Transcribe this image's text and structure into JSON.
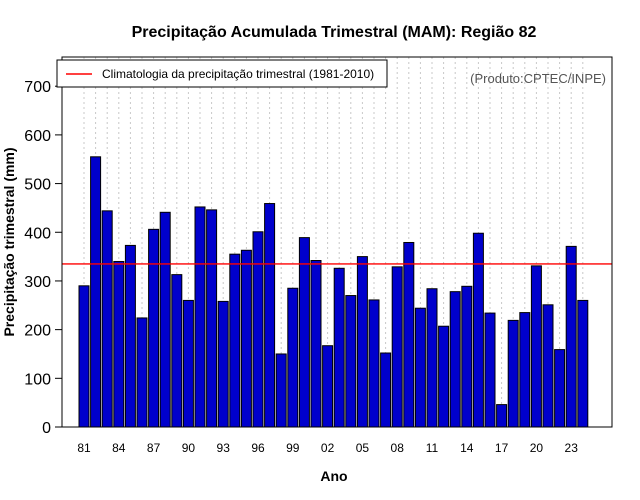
{
  "chart_data": {
    "type": "bar",
    "title": "Precipitação Acumulada Trimestral (MAM): Região 82",
    "xlabel": "Ano",
    "ylabel": "Precipitação trimestral (mm)",
    "ylim": [
      0,
      760
    ],
    "yticks": [
      0,
      100,
      200,
      300,
      400,
      500,
      600,
      700
    ],
    "years": [
      "81",
      "82",
      "83",
      "84",
      "85",
      "86",
      "87",
      "88",
      "89",
      "90",
      "91",
      "92",
      "93",
      "94",
      "95",
      "96",
      "97",
      "98",
      "99",
      "00",
      "01",
      "02",
      "03",
      "04",
      "05",
      "06",
      "07",
      "08",
      "09",
      "10",
      "11",
      "12",
      "13",
      "14",
      "15",
      "16",
      "17",
      "18",
      "19",
      "20",
      "21",
      "22",
      "23",
      "24"
    ],
    "values": [
      290,
      555,
      444,
      340,
      373,
      224,
      406,
      441,
      313,
      260,
      452,
      446,
      258,
      355,
      363,
      401,
      459,
      150,
      285,
      389,
      342,
      167,
      326,
      270,
      350,
      261,
      152,
      329,
      379,
      244,
      284,
      207,
      278,
      289,
      398,
      234,
      46,
      219,
      235,
      331,
      251,
      159,
      371,
      260
    ],
    "xtick_labels": [
      "81",
      "84",
      "87",
      "90",
      "93",
      "96",
      "99",
      "02",
      "05",
      "08",
      "11",
      "14",
      "17",
      "20",
      "23"
    ],
    "climatology": {
      "label": "Climatologia da precipitação trimestral (1981-2010)",
      "value": 335
    },
    "bar_color": "#0000cc",
    "line_color": "#ff0000",
    "grid": "vertical dotted",
    "legend_position": "top-left"
  },
  "credit": "(Produto:CPTEC/INPE)"
}
